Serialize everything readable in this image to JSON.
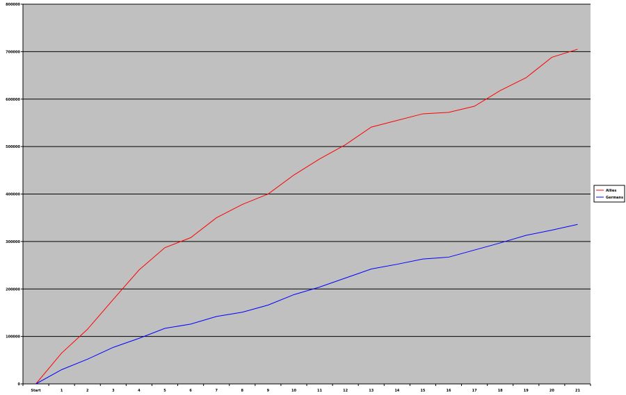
{
  "chart_data": {
    "type": "line",
    "title": "",
    "xlabel": "",
    "ylabel": "",
    "categories": [
      "Start",
      "1",
      "2",
      "3",
      "4",
      "5",
      "6",
      "7",
      "8",
      "9",
      "10",
      "11",
      "12",
      "13",
      "14",
      "15",
      "16",
      "17",
      "18",
      "19",
      "20",
      "21"
    ],
    "ylim": [
      0,
      800000
    ],
    "yticks": [
      0,
      100000,
      200000,
      300000,
      400000,
      500000,
      600000,
      700000,
      800000
    ],
    "grid": true,
    "legend_position": "right",
    "plot_background": "#c0c0c0",
    "series": [
      {
        "name": "Allies",
        "color": "#ff0000",
        "values": [
          0,
          65000,
          115000,
          178000,
          240000,
          287000,
          308000,
          350000,
          378000,
          400000,
          440000,
          474000,
          504000,
          541000,
          555000,
          569000,
          572000,
          585000,
          618000,
          645000,
          688000,
          705000
        ]
      },
      {
        "name": "Germans",
        "color": "#0000ff",
        "values": [
          0,
          30000,
          52000,
          77000,
          96000,
          117000,
          126000,
          142000,
          151000,
          166000,
          188000,
          204000,
          223000,
          242000,
          252000,
          263000,
          267000,
          282000,
          297000,
          313000,
          324000,
          336000
        ]
      }
    ]
  }
}
